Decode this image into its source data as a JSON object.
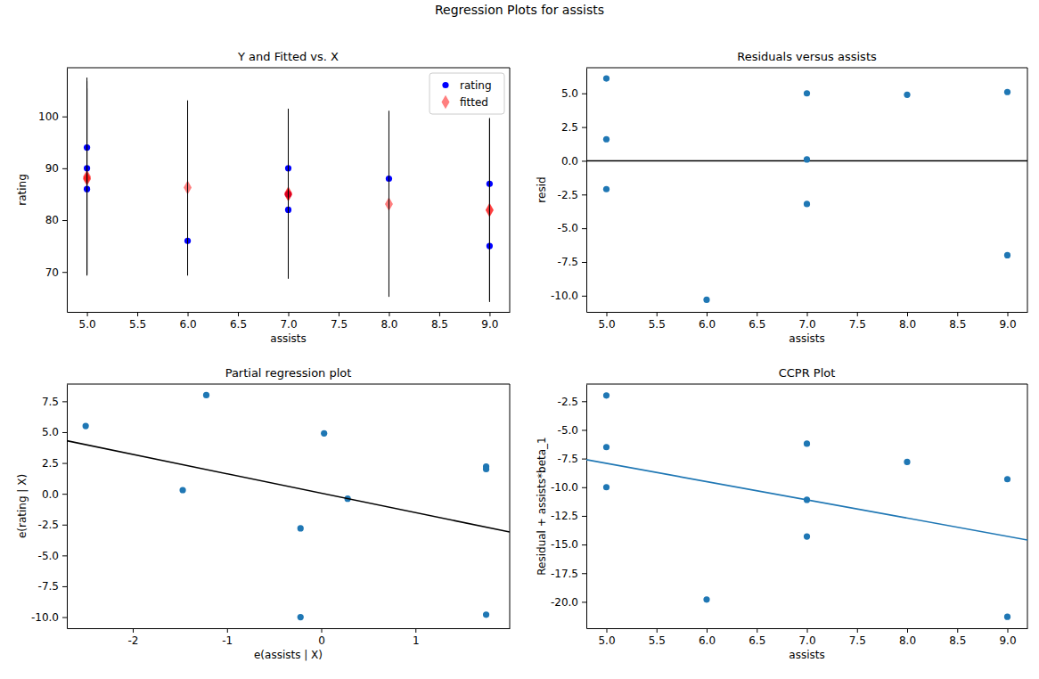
{
  "title": "Regression Plots for assists",
  "chart_data": [
    {
      "type": "scatter",
      "title": "Y and Fitted vs. X",
      "x_label": "assists",
      "y_label": "rating",
      "xlim": [
        4.8,
        9.2
      ],
      "xticks": [
        {
          "value": 5,
          "label": "5.0"
        },
        {
          "value": 5.5,
          "label": "5.5"
        },
        {
          "value": 6,
          "label": "6.0"
        },
        {
          "value": 6.5,
          "label": "6.5"
        },
        {
          "value": 7,
          "label": "7.0"
        },
        {
          "value": 7.5,
          "label": "7.5"
        },
        {
          "value": 8,
          "label": "8.0"
        },
        {
          "value": 8.5,
          "label": "8.5"
        },
        {
          "value": 9,
          "label": "9.0"
        }
      ],
      "ylim": [
        62.3,
        109.4
      ],
      "yticks": [
        70,
        80,
        90,
        100
      ],
      "legend": "upper right",
      "series": [
        {
          "name": "rating",
          "color": "#0000ff",
          "marker": "circle",
          "x": [
            5,
            5,
            5,
            6,
            7,
            7,
            7,
            8,
            9,
            9
          ],
          "values": [
            94,
            90,
            86,
            76,
            90,
            85,
            82,
            88,
            87,
            75
          ]
        },
        {
          "name": "fitted",
          "color": "#ff0000",
          "marker": "diamond",
          "x": [
            5,
            5,
            5,
            6,
            7,
            7,
            7,
            8,
            9,
            9
          ],
          "values": [
            87.9,
            88.4,
            88.1,
            86.3,
            85.0,
            84.9,
            85.2,
            83.1,
            81.9,
            82.0
          ],
          "lower": [
            69.3,
            69.6,
            69.4,
            69.3,
            68.7,
            68.8,
            69.0,
            65.2,
            64.2,
            64.5
          ],
          "upper": [
            107.5,
            105.4,
            106.8,
            103.1,
            101.5,
            101.2,
            101.3,
            101.1,
            99.7,
            99.5
          ]
        }
      ]
    },
    {
      "type": "scatter",
      "title": "Residuals versus assists",
      "x_label": "assists",
      "y_label": "resid",
      "xlim": [
        4.8,
        9.2
      ],
      "xticks": [
        {
          "value": 5,
          "label": "5.0"
        },
        {
          "value": 5.5,
          "label": "5.5"
        },
        {
          "value": 6,
          "label": "6.0"
        },
        {
          "value": 6.5,
          "label": "6.5"
        },
        {
          "value": 7,
          "label": "7.0"
        },
        {
          "value": 7.5,
          "label": "7.5"
        },
        {
          "value": 8,
          "label": "8.0"
        },
        {
          "value": 8.5,
          "label": "8.5"
        },
        {
          "value": 9,
          "label": "9.0"
        }
      ],
      "ylim": [
        -11.2,
        6.9
      ],
      "yticks": [
        {
          "value": -10,
          "label": "-10.0"
        },
        -7.5,
        {
          "value": -5,
          "label": "-5.0"
        },
        -2.5,
        {
          "value": 0,
          "label": "0.0"
        },
        2.5,
        {
          "value": 5,
          "label": "5.0"
        }
      ],
      "series": [
        {
          "type": "line",
          "color": "#000000",
          "line_style": "solid",
          "x": [
            4.8,
            9.2
          ],
          "values": [
            0,
            0
          ]
        },
        {
          "color": "#1f77b4",
          "marker": "circle",
          "x": [
            5,
            5,
            5,
            6,
            7,
            7,
            7,
            8,
            9,
            9
          ],
          "values": [
            6.1,
            1.6,
            -2.1,
            -10.3,
            5.0,
            0.1,
            -3.2,
            4.9,
            5.1,
            -7.0
          ]
        }
      ]
    },
    {
      "type": "scatter",
      "title": "Partial regression plot",
      "x_label": "e(assists | X)",
      "y_label": "e(rating | X)",
      "xlim": [
        -2.7,
        2.0
      ],
      "xticks": [
        -2,
        -1,
        0,
        1
      ],
      "ylim": [
        -10.9,
        8.9
      ],
      "yticks": [
        {
          "value": -10,
          "label": "-10.0"
        },
        -7.5,
        {
          "value": -5,
          "label": "-5.0"
        },
        -2.5,
        {
          "value": 0,
          "label": "0.0"
        },
        2.5,
        {
          "value": 5,
          "label": "5.0"
        },
        7.5
      ],
      "series": [
        {
          "color": "#1f77b4",
          "marker": "circle",
          "x": [
            -2.5,
            -1.47,
            -1.22,
            0.03,
            0.28,
            -0.22,
            -0.22,
            1.75,
            1.75,
            1.75
          ],
          "values": [
            5.5,
            0.3,
            8.0,
            4.9,
            -0.4,
            -2.8,
            -10.0,
            2.2,
            2.0,
            -9.8
          ]
        },
        {
          "type": "line",
          "color": "#000000",
          "line_style": "solid",
          "x": [
            -2.7,
            2.0
          ],
          "values": [
            4.3,
            -3.1
          ]
        }
      ]
    },
    {
      "type": "scatter",
      "title": "CCPR Plot",
      "x_label": "assists",
      "y_label": "Residual + assists*beta_1",
      "xlim": [
        4.8,
        9.2
      ],
      "xticks": [
        {
          "value": 5,
          "label": "5.0"
        },
        {
          "value": 5.5,
          "label": "5.5"
        },
        {
          "value": 6,
          "label": "6.0"
        },
        {
          "value": 6.5,
          "label": "6.5"
        },
        {
          "value": 7,
          "label": "7.0"
        },
        {
          "value": 7.5,
          "label": "7.5"
        },
        {
          "value": 8,
          "label": "8.0"
        },
        {
          "value": 8.5,
          "label": "8.5"
        },
        {
          "value": 9,
          "label": "9.0"
        }
      ],
      "ylim": [
        -22.3,
        -1.0
      ],
      "yticks": [
        {
          "value": -20,
          "label": "-20.0"
        },
        -17.5,
        {
          "value": -15,
          "label": "-15.0"
        },
        -12.5,
        {
          "value": -10,
          "label": "-10.0"
        },
        -7.5,
        {
          "value": -5,
          "label": "-5.0"
        },
        -2.5
      ],
      "series": [
        {
          "color": "#1f77b4",
          "marker": "circle",
          "x": [
            5,
            5,
            5,
            6,
            7,
            7,
            7,
            8,
            9,
            9
          ],
          "values": [
            -2.0,
            -6.5,
            -10.0,
            -19.8,
            -6.2,
            -11.1,
            -14.3,
            -7.8,
            -9.3,
            -21.3
          ]
        },
        {
          "type": "line",
          "color": "#1f77b4",
          "line_style": "solid",
          "x": [
            4.8,
            9.2
          ],
          "values": [
            -7.6,
            -14.6
          ]
        }
      ]
    }
  ]
}
